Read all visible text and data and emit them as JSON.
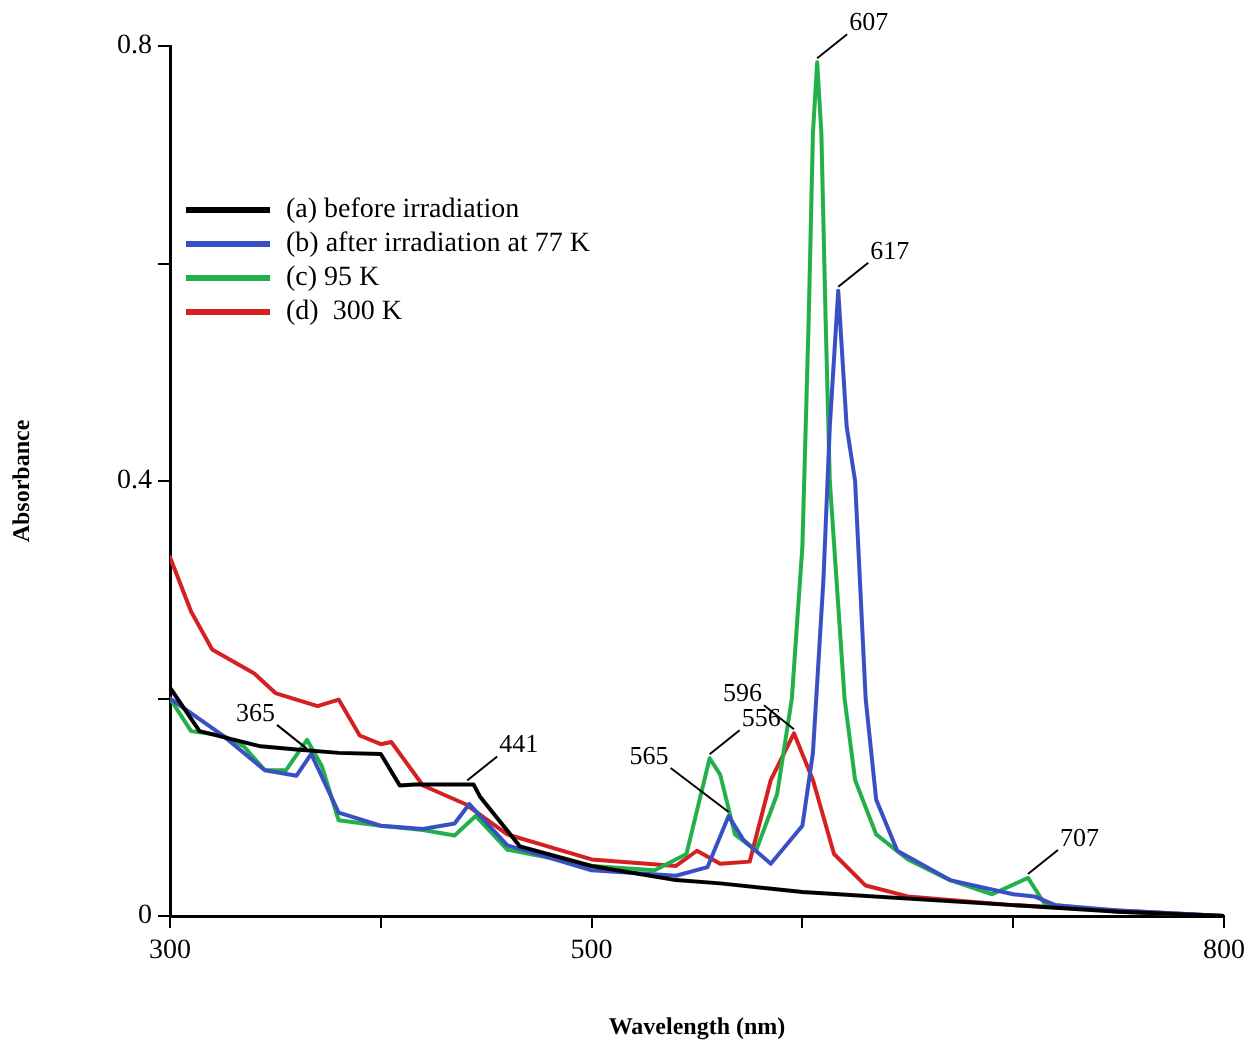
{
  "chart_data": {
    "type": "line",
    "xlabel": "Wavelength (nm)",
    "ylabel": "Absorbance",
    "xlim": [
      300,
      800
    ],
    "xticks": [
      300,
      {
        "value": 400,
        "label": null
      },
      500,
      {
        "value": 600,
        "label": null
      },
      {
        "value": 700,
        "label": null
      },
      800
    ],
    "ylim": [
      0,
      0.8
    ],
    "yticks": [
      0,
      {
        "value": 0.2,
        "label": null
      },
      0.4,
      {
        "value": 0.6,
        "label": null
      },
      0.8
    ],
    "grid": false,
    "legend": "top left",
    "marker": "none",
    "line_style": "solid",
    "series": [
      {
        "name": "(a) before irradiation",
        "color": "#000000",
        "x": [
          300,
          314,
          343,
          360,
          380,
          400,
          409,
          416,
          444,
          447,
          466,
          500,
          540,
          561,
          600,
          700,
          750,
          800
        ],
        "values": [
          0.21,
          0.17,
          0.156,
          0.153,
          0.15,
          0.149,
          0.12,
          0.121,
          0.121,
          0.11,
          0.064,
          0.046,
          0.033,
          0.03,
          0.022,
          0.01,
          0.004,
          0
        ]
      },
      {
        "name": "(b) after irradiation at 77 K",
        "color": "#3b4fc4",
        "x": [
          300,
          325,
          345,
          360,
          367,
          380,
          400,
          420,
          435,
          442,
          460,
          500,
          540,
          555,
          565,
          572,
          585,
          600,
          605,
          610,
          613,
          617,
          621,
          625,
          630,
          635,
          645,
          670,
          700,
          710,
          720,
          750,
          800
        ],
        "values": [
          0.2,
          0.166,
          0.134,
          0.129,
          0.149,
          0.095,
          0.083,
          0.08,
          0.085,
          0.103,
          0.065,
          0.042,
          0.037,
          0.045,
          0.092,
          0.07,
          0.048,
          0.083,
          0.15,
          0.31,
          0.45,
          0.575,
          0.45,
          0.4,
          0.2,
          0.107,
          0.06,
          0.033,
          0.02,
          0.018,
          0.01,
          0.005,
          0
        ]
      },
      {
        "name": "(c) 95 K",
        "color": "#22b04a",
        "x": [
          300,
          310,
          325,
          335,
          345,
          355,
          365,
          372,
          380,
          400,
          420,
          435,
          445,
          460,
          500,
          530,
          545,
          556,
          561,
          568,
          578,
          588,
          595,
          600,
          603,
          605,
          607,
          609,
          611,
          613,
          620,
          625,
          635,
          650,
          670,
          690,
          707,
          715,
          750,
          800
        ],
        "values": [
          0.2,
          0.17,
          0.166,
          0.156,
          0.134,
          0.134,
          0.162,
          0.138,
          0.088,
          0.083,
          0.079,
          0.074,
          0.092,
          0.061,
          0.046,
          0.042,
          0.057,
          0.145,
          0.13,
          0.075,
          0.06,
          0.112,
          0.2,
          0.34,
          0.55,
          0.72,
          0.785,
          0.72,
          0.55,
          0.4,
          0.2,
          0.125,
          0.075,
          0.052,
          0.033,
          0.02,
          0.035,
          0.011,
          0.004,
          0
        ]
      },
      {
        "name": "(d)  300 K",
        "color": "#d42020",
        "x": [
          300,
          310,
          320,
          340,
          350,
          370,
          380,
          390,
          400,
          405,
          420,
          440,
          460,
          500,
          540,
          550,
          561,
          575,
          585,
          596,
          605,
          615,
          630,
          650,
          700,
          800
        ],
        "values": [
          0.33,
          0.28,
          0.245,
          0.223,
          0.205,
          0.193,
          0.199,
          0.166,
          0.158,
          0.16,
          0.12,
          0.103,
          0.075,
          0.052,
          0.046,
          0.06,
          0.048,
          0.05,
          0.125,
          0.168,
          0.125,
          0.057,
          0.028,
          0.018,
          0.01,
          0
        ]
      }
    ],
    "annotations": [
      {
        "text": "365",
        "x": 365,
        "y": 0.15
      },
      {
        "text": "441",
        "x": 441,
        "y": 0.121
      },
      {
        "text": "556",
        "x": 556,
        "y": 0.145
      },
      {
        "text": "565",
        "x": 565,
        "y": 0.092
      },
      {
        "text": "596",
        "x": 596,
        "y": 0.168
      },
      {
        "text": "607",
        "x": 607,
        "y": 0.785
      },
      {
        "text": "617",
        "x": 617,
        "y": 0.575
      },
      {
        "text": "707",
        "x": 707,
        "y": 0.035
      }
    ]
  }
}
